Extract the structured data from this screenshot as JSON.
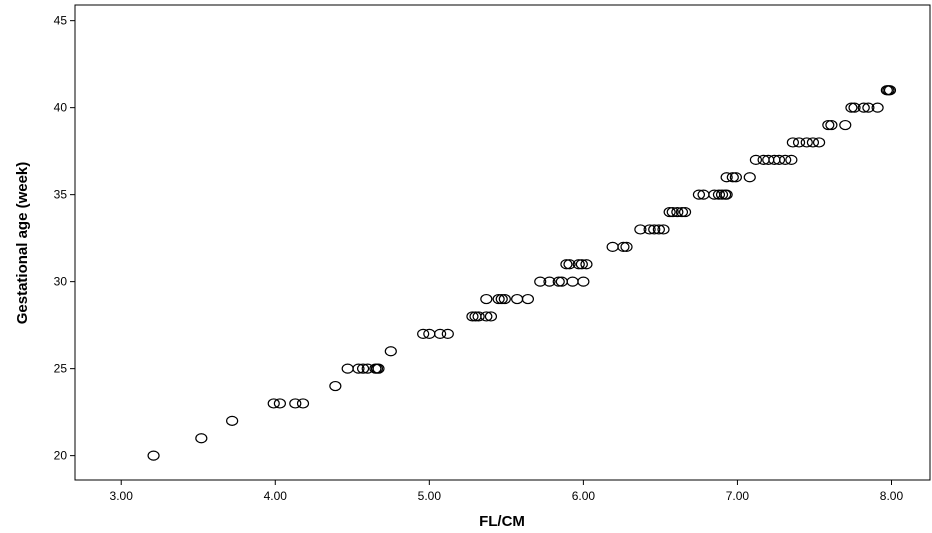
{
  "chart_data": {
    "type": "scatter",
    "xlabel": "FL/CM",
    "ylabel": "Gestational age (week)",
    "xlim": [
      2.7,
      8.25
    ],
    "ylim": [
      18.6,
      45.9
    ],
    "x_ticks": [
      "3.00",
      "4.00",
      "5.00",
      "6.00",
      "7.00",
      "8.00"
    ],
    "x_tick_values": [
      3,
      4,
      5,
      6,
      7,
      8
    ],
    "y_ticks": [
      "20",
      "25",
      "30",
      "35",
      "40",
      "45"
    ],
    "y_tick_values": [
      20,
      25,
      30,
      35,
      40,
      45
    ],
    "grid": false,
    "marker": "open-circle",
    "marker_color": "#000000",
    "series": [
      {
        "points": [
          [
            3.21,
            20
          ],
          [
            3.52,
            21
          ],
          [
            3.72,
            22
          ],
          [
            3.99,
            23
          ],
          [
            4.03,
            23
          ],
          [
            4.13,
            23
          ],
          [
            4.18,
            23
          ],
          [
            4.39,
            24
          ],
          [
            4.47,
            25
          ],
          [
            4.54,
            25
          ],
          [
            4.57,
            25
          ],
          [
            4.6,
            25
          ],
          [
            4.65,
            25
          ],
          [
            4.66,
            25
          ],
          [
            4.67,
            25
          ],
          [
            4.75,
            26
          ],
          [
            4.96,
            27
          ],
          [
            5.0,
            27
          ],
          [
            5.07,
            27
          ],
          [
            5.12,
            27
          ],
          [
            5.28,
            28
          ],
          [
            5.3,
            28
          ],
          [
            5.32,
            28
          ],
          [
            5.37,
            28
          ],
          [
            5.4,
            28
          ],
          [
            5.37,
            29
          ],
          [
            5.45,
            29
          ],
          [
            5.47,
            29
          ],
          [
            5.49,
            29
          ],
          [
            5.57,
            29
          ],
          [
            5.64,
            29
          ],
          [
            5.72,
            30
          ],
          [
            5.78,
            30
          ],
          [
            5.84,
            30
          ],
          [
            5.86,
            30
          ],
          [
            5.93,
            30
          ],
          [
            6.0,
            30
          ],
          [
            5.89,
            31
          ],
          [
            5.91,
            31
          ],
          [
            5.97,
            31
          ],
          [
            5.99,
            31
          ],
          [
            6.02,
            31
          ],
          [
            6.19,
            32
          ],
          [
            6.26,
            32
          ],
          [
            6.28,
            32
          ],
          [
            6.37,
            33
          ],
          [
            6.43,
            33
          ],
          [
            6.46,
            33
          ],
          [
            6.49,
            33
          ],
          [
            6.52,
            33
          ],
          [
            6.56,
            34
          ],
          [
            6.58,
            34
          ],
          [
            6.61,
            34
          ],
          [
            6.64,
            34
          ],
          [
            6.66,
            34
          ],
          [
            6.75,
            35
          ],
          [
            6.78,
            35
          ],
          [
            6.85,
            35
          ],
          [
            6.88,
            35
          ],
          [
            6.9,
            35
          ],
          [
            6.92,
            35
          ],
          [
            6.93,
            35
          ],
          [
            6.93,
            36
          ],
          [
            6.97,
            36
          ],
          [
            6.99,
            36
          ],
          [
            7.08,
            36
          ],
          [
            7.12,
            37
          ],
          [
            7.17,
            37
          ],
          [
            7.2,
            37
          ],
          [
            7.24,
            37
          ],
          [
            7.27,
            37
          ],
          [
            7.31,
            37
          ],
          [
            7.35,
            37
          ],
          [
            7.36,
            38
          ],
          [
            7.4,
            38
          ],
          [
            7.45,
            38
          ],
          [
            7.49,
            38
          ],
          [
            7.53,
            38
          ],
          [
            7.59,
            39
          ],
          [
            7.61,
            39
          ],
          [
            7.7,
            39
          ],
          [
            7.74,
            40
          ],
          [
            7.76,
            40
          ],
          [
            7.82,
            40
          ],
          [
            7.85,
            40
          ],
          [
            7.91,
            40
          ],
          [
            7.97,
            41
          ],
          [
            7.98,
            41
          ],
          [
            7.99,
            41
          ]
        ]
      }
    ]
  }
}
